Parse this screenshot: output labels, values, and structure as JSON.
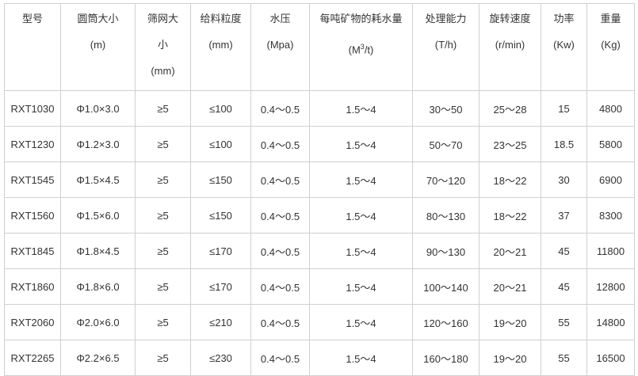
{
  "headers": [
    {
      "name": "型号",
      "unit": ""
    },
    {
      "name": "圆筒大小",
      "unit": "(m)"
    },
    {
      "name": "筛网大小",
      "unit": "(mm)"
    },
    {
      "name": "给料粒度",
      "unit": "(mm)"
    },
    {
      "name": "水压",
      "unit": "(Mpa)"
    },
    {
      "name": "每吨矿物的耗水量",
      "unit": "(M3/t)"
    },
    {
      "name": "处理能力",
      "unit": "(T/h)"
    },
    {
      "name": "旋转速度",
      "unit": "(r/min)"
    },
    {
      "name": "功率",
      "unit": "(Kw)"
    },
    {
      "name": "重量",
      "unit": "(Kg)"
    }
  ],
  "rows": [
    [
      "RXT1030",
      "Φ1.0×3.0",
      "≥5",
      "≤100",
      "0.4～0.5",
      "1.5～4",
      "30～50",
      "25～28",
      "15",
      "4800"
    ],
    [
      "RXT1230",
      "Φ1.2×3.0",
      "≥5",
      "≤100",
      "0.4～0.5",
      "1.5～4",
      "50～70",
      "23～25",
      "18.5",
      "5800"
    ],
    [
      "RXT1545",
      "Φ1.5×4.5",
      "≥5",
      "≤150",
      "0.4～0.5",
      "1.5～4",
      "70～120",
      "18～22",
      "30",
      "6900"
    ],
    [
      "RXT1560",
      "Φ1.5×6.0",
      "≥5",
      "≤150",
      "0.4～0.5",
      "1.5～4",
      "80～130",
      "18～22",
      "37",
      "8300"
    ],
    [
      "RXT1845",
      "Φ1.8×4.5",
      "≥5",
      "≤170",
      "0.4～0.5",
      "1.5～4",
      "90～130",
      "20～21",
      "45",
      "11800"
    ],
    [
      "RXT1860",
      "Φ1.8×6.0",
      "≥5",
      "≤170",
      "0.4～0.5",
      "1.5～4",
      "100～140",
      "20～21",
      "45",
      "12800"
    ],
    [
      "RXT2060",
      "Φ2.0×6.0",
      "≥5",
      "≤210",
      "0.4～0.5",
      "1.5～4",
      "120～160",
      "19～20",
      "55",
      "14800"
    ],
    [
      "RXT2265",
      "Φ2.2×6.5",
      "≥5",
      "≤230",
      "0.4～0.5",
      "1.5～4",
      "160～180",
      "19～20",
      "55",
      "16500"
    ]
  ]
}
